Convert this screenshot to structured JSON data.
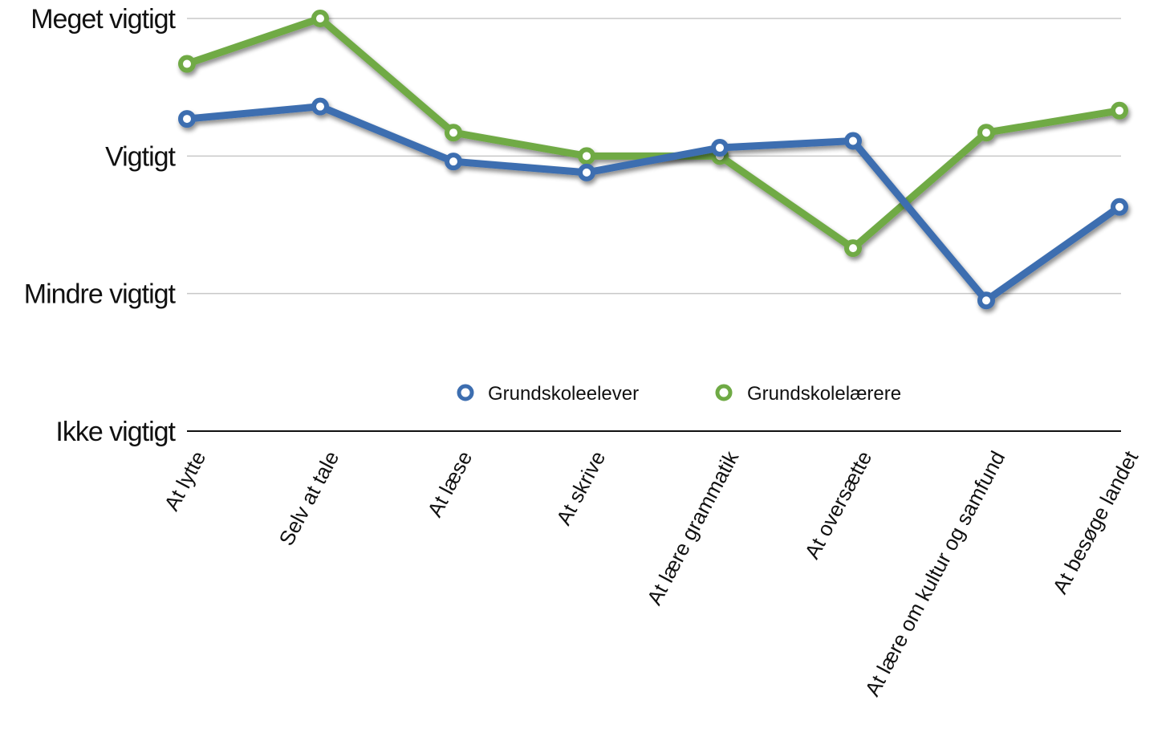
{
  "chart_data": {
    "type": "line",
    "title": "",
    "xlabel": "",
    "ylabel": "",
    "categories": [
      "At lytte",
      "Selv at tale",
      "At læse",
      "At skrive",
      "At lære grammatik",
      "At oversætte",
      "At lære om kultur og samfund",
      "At besøge landet"
    ],
    "y_ticks": [
      {
        "value": 0,
        "label": "Ikke vigtigt"
      },
      {
        "value": 1,
        "label": "Mindre vigtigt"
      },
      {
        "value": 2,
        "label": "Vigtigt"
      },
      {
        "value": 3,
        "label": "Meget vigtigt"
      }
    ],
    "ylim": [
      0,
      3
    ],
    "grid": true,
    "legend_position": "bottom-center",
    "series": [
      {
        "name": "Grundskoleelever",
        "color": "#3d6eb0",
        "values": [
          2.27,
          2.36,
          1.96,
          1.88,
          2.06,
          2.11,
          0.95,
          1.63
        ]
      },
      {
        "name": "Grundskolelærere",
        "color": "#6faa45",
        "values": [
          2.67,
          3.0,
          2.17,
          2.0,
          2.0,
          1.33,
          2.17,
          2.33
        ]
      }
    ]
  }
}
